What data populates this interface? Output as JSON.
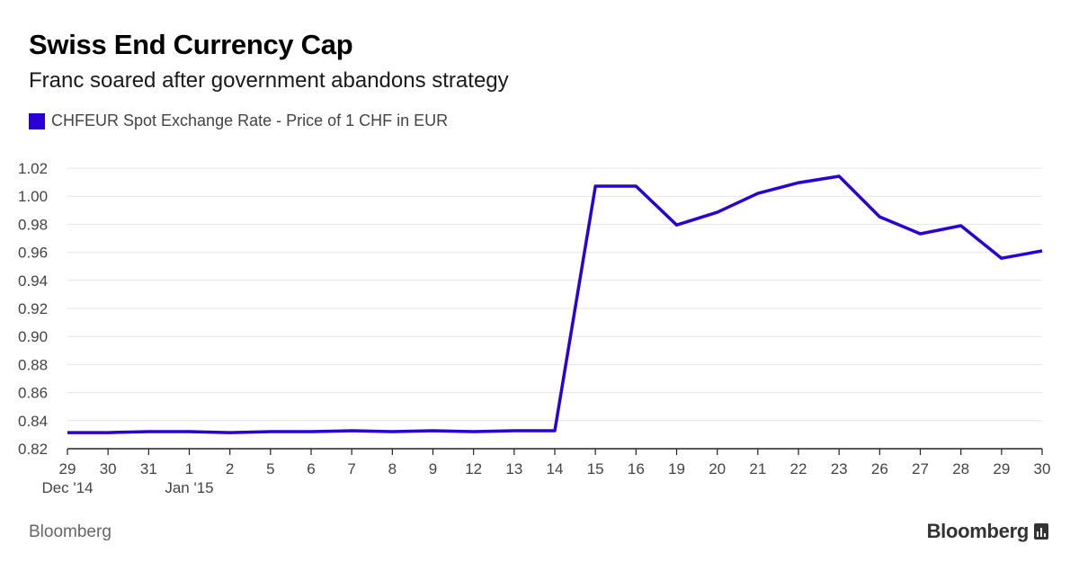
{
  "header": {
    "title": "Swiss End Currency Cap",
    "subtitle": "Franc soared after government abandons strategy"
  },
  "legend": {
    "label": "CHFEUR Spot Exchange Rate - Price of 1 CHF in EUR"
  },
  "footer": {
    "source": "Bloomberg",
    "brand": "Bloomberg"
  },
  "colors": {
    "series": "#2a00d4",
    "grid": "#e6e6e6",
    "axis": "#222222"
  },
  "chart_data": {
    "type": "line",
    "categories": [
      "29",
      "30",
      "31",
      "1",
      "2",
      "5",
      "6",
      "7",
      "8",
      "9",
      "12",
      "13",
      "14",
      "15",
      "16",
      "19",
      "20",
      "21",
      "22",
      "23",
      "26",
      "27",
      "28",
      "29",
      "30"
    ],
    "period_labels": [
      {
        "index": 0,
        "label": "Dec '14"
      },
      {
        "index": 3,
        "label": "Jan '15"
      }
    ],
    "series": [
      {
        "name": "CHFEUR Spot Exchange Rate - Price of 1 CHF in EUR",
        "values": [
          0.8315,
          0.8315,
          0.8322,
          0.8322,
          0.8315,
          0.8322,
          0.8322,
          0.8328,
          0.8322,
          0.8328,
          0.8322,
          0.8328,
          0.8328,
          1.0072,
          1.0072,
          0.9795,
          0.9885,
          1.002,
          1.0096,
          1.0142,
          0.9853,
          0.9732,
          0.979,
          0.9558,
          0.961
        ]
      }
    ],
    "yticks": [
      "0.82",
      "0.84",
      "0.86",
      "0.88",
      "0.90",
      "0.92",
      "0.94",
      "0.96",
      "0.98",
      "1.00",
      "1.02"
    ],
    "ylim": [
      0.82,
      1.02
    ],
    "grid": true
  }
}
